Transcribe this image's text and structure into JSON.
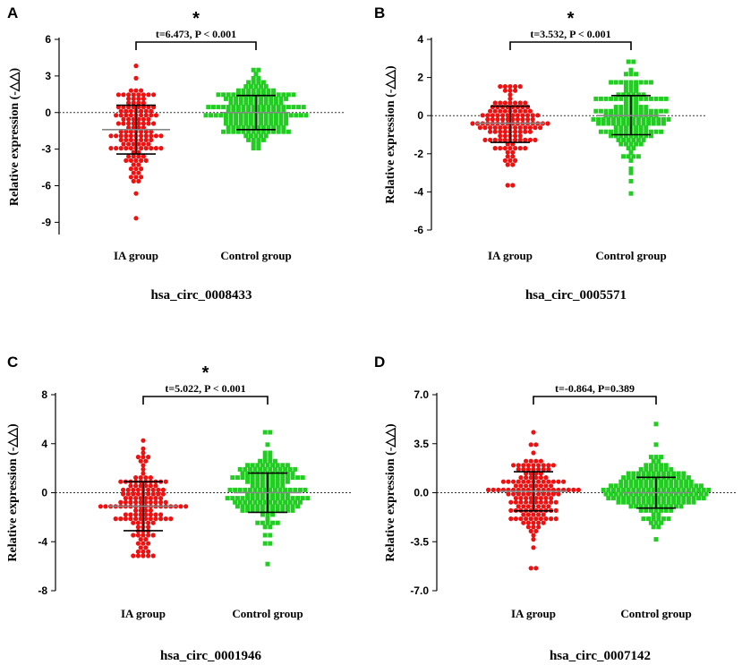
{
  "chart_data": [
    {
      "panel": "A",
      "type": "scatter",
      "title": "hsa_circ_0008433",
      "ylabel": "Relative expression (-△△)",
      "categories": [
        "IA group",
        "Control group"
      ],
      "yticks": [
        "6",
        "3",
        "0",
        "-3",
        "-6",
        "-9"
      ],
      "ylim": [
        -10,
        6
      ],
      "stat_text": "t=6.473, P < 0.001",
      "significance": "*",
      "series": [
        {
          "name": "IA group",
          "color": "#ee1111",
          "marker": "circle",
          "mean": -1.4,
          "sd_upper": 0.6,
          "sd_lower": -3.4,
          "min": -8.6,
          "max": 3.8,
          "n": 130
        },
        {
          "name": "Control group",
          "color": "#22cc22",
          "marker": "square",
          "mean": 0.0,
          "sd_upper": 1.4,
          "sd_lower": -1.4,
          "min": -3.0,
          "max": 3.5,
          "n": 180
        }
      ]
    },
    {
      "panel": "B",
      "type": "scatter",
      "title": "hsa_circ_0005571",
      "ylabel": "Relative expression (-△△)",
      "categories": [
        "IA group",
        "Control group"
      ],
      "yticks": [
        "4",
        "2",
        "0",
        "-2",
        "-4",
        "-6"
      ],
      "ylim": [
        -6,
        4
      ],
      "stat_text": "t=3.532, P < 0.001",
      "significance": "*",
      "series": [
        {
          "name": "IA group",
          "color": "#ee1111",
          "marker": "circle",
          "mean": -0.4,
          "sd_upper": 0.5,
          "sd_lower": -1.4,
          "min": -3.7,
          "max": 1.5,
          "n": 130
        },
        {
          "name": "Control group",
          "color": "#22cc22",
          "marker": "square",
          "mean": 0.0,
          "sd_upper": 1.05,
          "sd_lower": -1.0,
          "min": -4.1,
          "max": 2.8,
          "n": 160
        }
      ]
    },
    {
      "panel": "C",
      "type": "scatter",
      "title": "hsa_circ_0001946",
      "ylabel": "Relative expression (-△△)",
      "categories": [
        "IA group",
        "Control group"
      ],
      "yticks": [
        "8",
        "4",
        "0",
        "-4",
        "-8"
      ],
      "ylim": [
        -8,
        8
      ],
      "stat_text": "t=5.022, P < 0.001",
      "significance": "*",
      "series": [
        {
          "name": "IA group",
          "color": "#ee1111",
          "marker": "circle",
          "mean": -1.1,
          "sd_upper": 0.9,
          "sd_lower": -3.1,
          "min": -5.2,
          "max": 4.3,
          "n": 140
        },
        {
          "name": "Control group",
          "color": "#22cc22",
          "marker": "square",
          "mean": 0.0,
          "sd_upper": 1.6,
          "sd_lower": -1.6,
          "min": -5.8,
          "max": 4.9,
          "n": 170
        }
      ]
    },
    {
      "panel": "D",
      "type": "scatter",
      "title": "hsa_circ_0007142",
      "ylabel": "Relative expression (-△△)",
      "categories": [
        "IA group",
        "Control group"
      ],
      "yticks": [
        "7.0",
        "3.5",
        "0.0",
        "-3.5",
        "-7.0"
      ],
      "ylim": [
        -7,
        7
      ],
      "stat_text": "t=-0.864, P=0.389",
      "significance": "",
      "series": [
        {
          "name": "IA group",
          "color": "#ee1111",
          "marker": "circle",
          "mean": 0.1,
          "sd_upper": 1.5,
          "sd_lower": -1.3,
          "min": -5.4,
          "max": 4.2,
          "n": 150
        },
        {
          "name": "Control group",
          "color": "#22cc22",
          "marker": "square",
          "mean": 0.0,
          "sd_upper": 1.1,
          "sd_lower": -1.1,
          "min": -3.2,
          "max": 5.0,
          "n": 190
        }
      ]
    }
  ]
}
